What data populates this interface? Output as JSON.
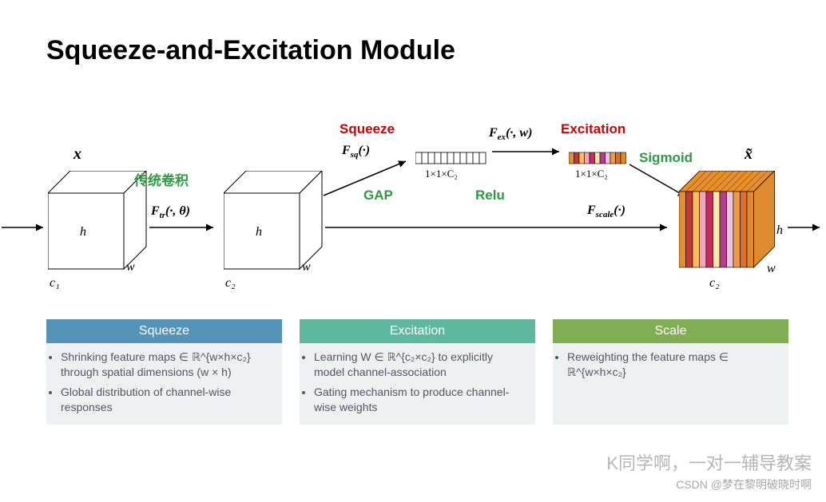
{
  "title": "Squeeze-and-Excitation Module",
  "labels": {
    "x": "x",
    "x_tilde": "x̃",
    "h": "h",
    "w": "w",
    "c1": "c₁",
    "c2": "c₂",
    "ftr": "F_tr(·, θ)",
    "fsq": "F_sq(·)",
    "fex": "F_ex(·, w)",
    "fscale": "F_scale(·)",
    "conv": "传统卷积",
    "squeeze": "Squeeze",
    "excitation": "Excitation",
    "sigmoid": "Sigmoid",
    "gap": "GAP",
    "relu": "Relu",
    "vec1": "1×1×C₂",
    "vec2": "1×1×C₂"
  },
  "colors": {
    "cube_stroke": "#000000",
    "cube_fill": "#ffffff",
    "squeeze_hdr": "#5594b9",
    "excitation_hdr": "#5db99e",
    "scale_hdr": "#7fae53",
    "box_bg": "#eef1f1",
    "slab_palette": [
      "#e88f2a",
      "#c43a2f",
      "#f4c05a",
      "#f0a3c3",
      "#d0285c",
      "#ffe9a8",
      "#b73a8f",
      "#e8c6e0",
      "#f39a3c",
      "#e06d2e",
      "#dd8b2e"
    ]
  },
  "vec1_cells": 11,
  "vec2_cells": 11,
  "slabs": 11,
  "cube": {
    "w": 95,
    "h": 95,
    "depth": 28
  },
  "boxes": {
    "squeeze": {
      "title": "Squeeze",
      "items": [
        "Shrinking feature maps ∈ ℝ^{w×h×c₂} through spatial dimensions (w × h)",
        "Global distribution of channel-wise responses"
      ]
    },
    "excitation": {
      "title": "Excitation",
      "items": [
        "Learning W ∈ ℝ^{c₂×c₂} to explicitly model channel-association",
        "Gating mechanism to produce channel-wise weights"
      ]
    },
    "scale": {
      "title": "Scale",
      "items": [
        "Reweighting the feature maps ∈ ℝ^{w×h×c₂}"
      ]
    }
  },
  "watermark1": "K同学啊，一对一辅导教案",
  "watermark2": "CSDN @梦在黎明破晓时啊"
}
